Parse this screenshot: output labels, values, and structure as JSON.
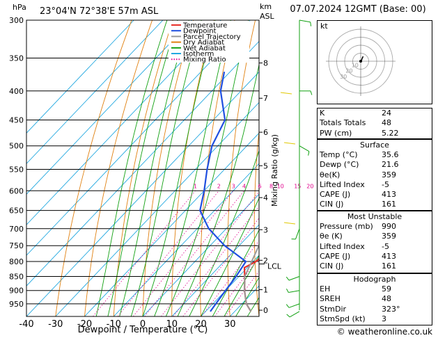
{
  "header": {
    "units_hpa": "hPa",
    "location": "23°04'N  72°38'E  57m  ASL",
    "units_km": "km",
    "units_asl": "ASL",
    "datetime": "07.07.2024  12GMT  (Base: 00)"
  },
  "legend": [
    {
      "label": "Temperature",
      "color": "#e8302a"
    },
    {
      "label": "Dewpoint",
      "color": "#1f4fe0"
    },
    {
      "label": "Parcel Trajectory",
      "color": "#999999"
    },
    {
      "label": "Dry Adiabat",
      "color": "#e08010"
    },
    {
      "label": "Wet Adiabat",
      "color": "#10a010"
    },
    {
      "label": "Isotherm",
      "color": "#22a8e0"
    },
    {
      "label": "Mixing Ratio",
      "color": "#e0008c"
    }
  ],
  "axis": {
    "xlabel": "Dewpoint / Temperature (°C)",
    "ylabel_right": "Mixing Ratio (g/kg)",
    "lcl_label": "LCL"
  },
  "hodograph": {
    "label": "kt",
    "ring_labels": [
      "10",
      "20",
      "30"
    ]
  },
  "indices": [
    {
      "label": "K",
      "value": "24"
    },
    {
      "label": "Totals Totals",
      "value": "48"
    },
    {
      "label": "PW (cm)",
      "value": "5.22"
    }
  ],
  "surface": {
    "title": "Surface",
    "rows": [
      {
        "label": "Temp (°C)",
        "value": "35.6"
      },
      {
        "label": "Dewp (°C)",
        "value": "21.6"
      },
      {
        "label": "θe(K)",
        "value": "359"
      },
      {
        "label": "Lifted Index",
        "value": "-5"
      },
      {
        "label": "CAPE (J)",
        "value": "413"
      },
      {
        "label": "CIN (J)",
        "value": "161"
      }
    ]
  },
  "most_unstable": {
    "title": "Most Unstable",
    "rows": [
      {
        "label": "Pressure (mb)",
        "value": "990"
      },
      {
        "label": "θe (K)",
        "value": "359"
      },
      {
        "label": "Lifted Index",
        "value": "-5"
      },
      {
        "label": "CAPE (J)",
        "value": "413"
      },
      {
        "label": "CIN (J)",
        "value": "161"
      }
    ]
  },
  "hodograph_table": {
    "title": "Hodograph",
    "rows": [
      {
        "label": "EH",
        "value": "59"
      },
      {
        "label": "SREH",
        "value": "48"
      },
      {
        "label": "StmDir",
        "value": "323°"
      },
      {
        "label": "StmSpd (kt)",
        "value": "3"
      }
    ]
  },
  "credit": "© weatheronline.co.uk",
  "chart_data": {
    "type": "line",
    "chart_kind": "skew-T log-P",
    "pressure_levels": [
      300,
      350,
      400,
      450,
      500,
      550,
      600,
      650,
      700,
      750,
      800,
      850,
      900,
      950
    ],
    "x_ticks": [
      -40,
      -30,
      -20,
      -10,
      0,
      10,
      20,
      30
    ],
    "xlim": [
      -40,
      40
    ],
    "ylim": [
      1000,
      300
    ],
    "km_ticks": [
      {
        "p": 975,
        "km": "0"
      },
      {
        "p": 897,
        "km": "1"
      },
      {
        "p": 796,
        "km": "2"
      },
      {
        "p": 703,
        "km": "3"
      },
      {
        "p": 617,
        "km": "4"
      },
      {
        "p": 542,
        "km": "5"
      },
      {
        "p": 473,
        "km": "6"
      },
      {
        "p": 412,
        "km": "7"
      },
      {
        "p": 357,
        "km": "8"
      }
    ],
    "mixing_ratio_labels": [
      "1",
      "2",
      "3",
      "4",
      "6",
      "8",
      "10",
      "15",
      "20",
      "25"
    ],
    "mixing_ratios": [
      1,
      2,
      3,
      4,
      6,
      8,
      10,
      15,
      20,
      25
    ],
    "lcl_pressure": 808,
    "series": [
      {
        "name": "Temperature",
        "color": "#e8302a",
        "points": [
          [
            980,
            35.6
          ],
          [
            950,
            31.5
          ],
          [
            900,
            26.5
          ],
          [
            850,
            22.0
          ],
          [
            820,
            19.0
          ],
          [
            800,
            21.0
          ],
          [
            780,
            21.5
          ],
          [
            750,
            20.5
          ],
          [
            700,
            17.0
          ],
          [
            650,
            12.0
          ],
          [
            600,
            6.5
          ],
          [
            550,
            1.0
          ],
          [
            500,
            -6.0
          ],
          [
            450,
            -11.5
          ],
          [
            400,
            -17.5
          ],
          [
            370,
            -22.0
          ],
          [
            350,
            -25.5
          ]
        ]
      },
      {
        "name": "Dewpoint",
        "color": "#1f4fe0",
        "points": [
          [
            980,
            21.6
          ],
          [
            950,
            21.0
          ],
          [
            900,
            20.0
          ],
          [
            850,
            19.0
          ],
          [
            800,
            17.5
          ],
          [
            750,
            5.0
          ],
          [
            700,
            -6.0
          ],
          [
            650,
            -15.0
          ],
          [
            600,
            -20.0
          ],
          [
            550,
            -26.0
          ],
          [
            500,
            -32.0
          ],
          [
            450,
            -36.0
          ],
          [
            400,
            -47.0
          ],
          [
            370,
            -52.0
          ]
        ]
      },
      {
        "name": "Parcel Trajectory",
        "color": "#999999",
        "points": [
          [
            980,
            35.6
          ],
          [
            950,
            31.5
          ],
          [
            900,
            26.5
          ],
          [
            850,
            22.0
          ],
          [
            800,
            19.5
          ],
          [
            750,
            16.8
          ],
          [
            700,
            13.5
          ],
          [
            650,
            10.0
          ],
          [
            600,
            6.0
          ],
          [
            550,
            1.5
          ],
          [
            500,
            -3.5
          ],
          [
            450,
            -9.5
          ],
          [
            400,
            -16.5
          ],
          [
            370,
            -21.0
          ]
        ]
      }
    ],
    "wind_barbs": [
      {
        "p": 300,
        "dir": 100,
        "kt": 10
      },
      {
        "p": 400,
        "dir": 90,
        "kt": 8
      },
      {
        "p": 500,
        "dir": 120,
        "kt": 5
      },
      {
        "p": 700,
        "dir": 200,
        "kt": 5
      },
      {
        "p": 850,
        "dir": 250,
        "kt": 10
      },
      {
        "p": 900,
        "dir": 260,
        "kt": 10
      },
      {
        "p": 950,
        "dir": 250,
        "kt": 10
      },
      {
        "p": 980,
        "dir": 240,
        "kt": 8
      }
    ],
    "hodograph_points": [
      [
        0,
        0
      ],
      [
        1,
        1
      ],
      [
        2,
        4
      ],
      [
        3,
        6
      ]
    ]
  }
}
